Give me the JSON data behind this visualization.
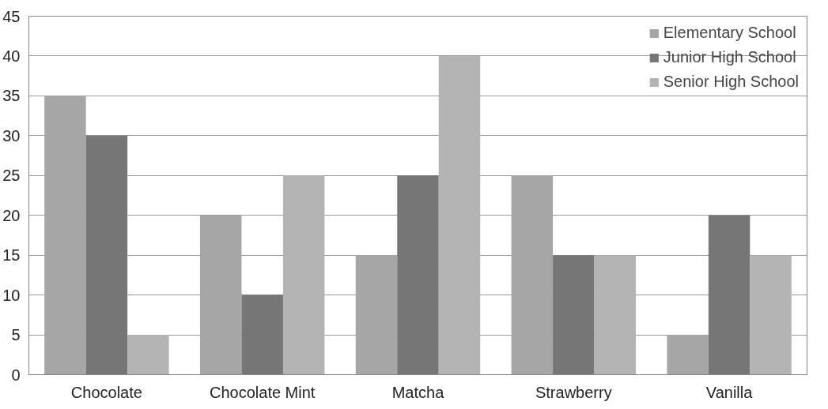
{
  "chart_data": {
    "type": "bar",
    "categories": [
      "Chocolate",
      "Chocolate Mint",
      "Matcha",
      "Strawberry",
      "Vanilla"
    ],
    "series": [
      {
        "name": "Elementary School",
        "color": "#a6a6a6",
        "values": [
          35,
          20,
          15,
          25,
          5
        ]
      },
      {
        "name": "Junior High School",
        "color": "#767676",
        "values": [
          30,
          10,
          25,
          15,
          20
        ]
      },
      {
        "name": "Senior High School",
        "color": "#b4b4b4",
        "values": [
          5,
          25,
          40,
          15,
          15
        ]
      }
    ],
    "ylim": [
      0,
      45
    ],
    "yticks": [
      0,
      5,
      10,
      15,
      20,
      25,
      30,
      35,
      40,
      45
    ],
    "grid": "y",
    "legend": "top right"
  }
}
